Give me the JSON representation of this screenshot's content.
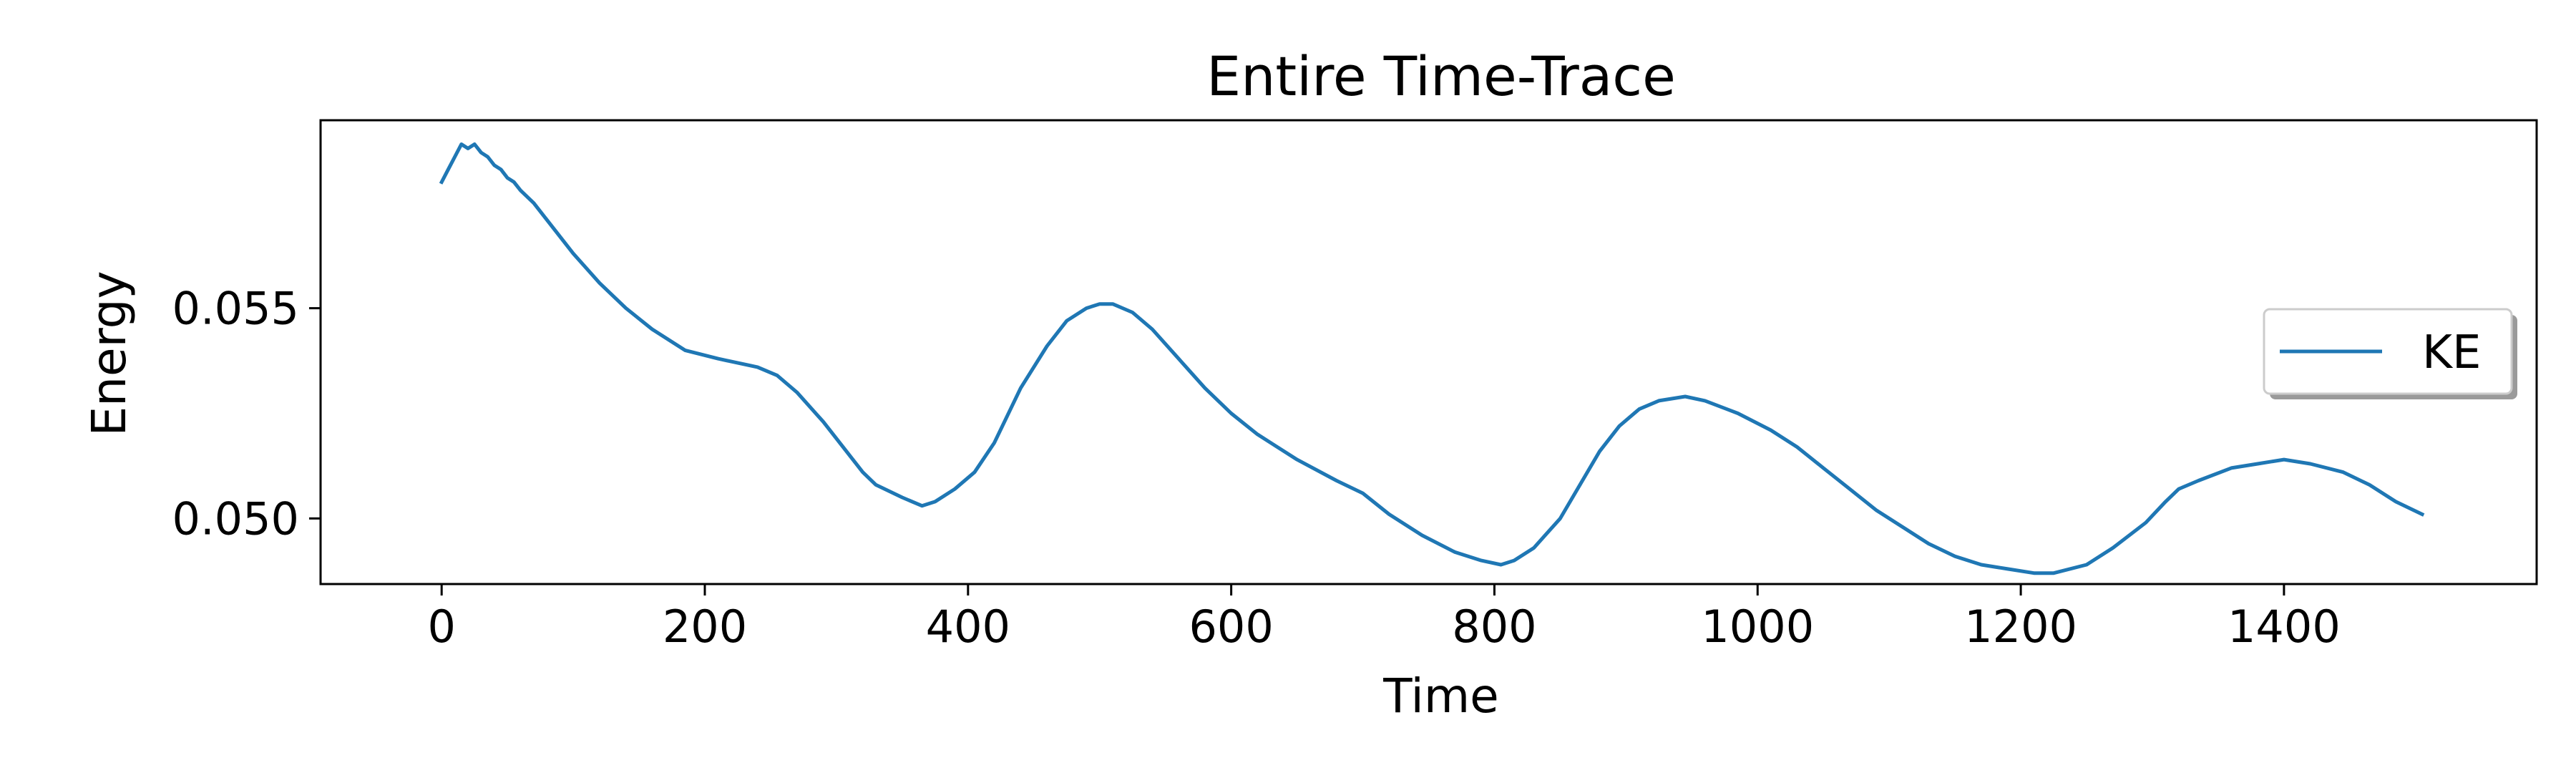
{
  "chart_data": {
    "type": "line",
    "title": "Entire Time-Trace",
    "xlabel": "Time",
    "ylabel": "Energy",
    "xlim": [
      -92,
      1592
    ],
    "ylim": [
      0.04844,
      0.05947
    ],
    "xticks": [
      0,
      200,
      400,
      600,
      800,
      1000,
      1200,
      1400
    ],
    "xtick_labels": [
      "0",
      "200",
      "400",
      "600",
      "800",
      "1000",
      "1200",
      "1400"
    ],
    "yticks": [
      0.05,
      0.055
    ],
    "ytick_labels": [
      "0.050",
      "0.055"
    ],
    "grid": false,
    "legend_position": "center-right",
    "series": [
      {
        "name": "KE",
        "color": "#1f77b4",
        "x": [
          0,
          5,
          10,
          15,
          20,
          25,
          30,
          35,
          40,
          45,
          50,
          55,
          60,
          70,
          80,
          90,
          100,
          120,
          140,
          160,
          185,
          210,
          240,
          255,
          270,
          290,
          310,
          320,
          330,
          350,
          365,
          375,
          390,
          405,
          420,
          440,
          460,
          475,
          490,
          500,
          510,
          525,
          540,
          560,
          580,
          600,
          620,
          650,
          680,
          700,
          720,
          745,
          770,
          790,
          805,
          815,
          830,
          850,
          865,
          880,
          895,
          910,
          925,
          945,
          960,
          985,
          1010,
          1030,
          1050,
          1070,
          1090,
          1110,
          1130,
          1150,
          1170,
          1190,
          1210,
          1225,
          1250,
          1270,
          1295,
          1310,
          1320,
          1335,
          1360,
          1380,
          1400,
          1420,
          1445,
          1465,
          1485,
          1505
        ],
        "y": [
          0.058,
          0.0583,
          0.0586,
          0.0589,
          0.0588,
          0.0589,
          0.0587,
          0.0586,
          0.0584,
          0.0583,
          0.0581,
          0.058,
          0.0578,
          0.0575,
          0.0571,
          0.0567,
          0.0563,
          0.0556,
          0.055,
          0.0545,
          0.054,
          0.0538,
          0.0536,
          0.0534,
          0.053,
          0.0523,
          0.0515,
          0.0511,
          0.0508,
          0.0505,
          0.0503,
          0.0504,
          0.0507,
          0.0511,
          0.0518,
          0.0531,
          0.0541,
          0.0547,
          0.055,
          0.0551,
          0.0551,
          0.0549,
          0.0545,
          0.0538,
          0.0531,
          0.0525,
          0.052,
          0.0514,
          0.0509,
          0.0506,
          0.0501,
          0.0496,
          0.0492,
          0.049,
          0.0489,
          0.049,
          0.0493,
          0.05,
          0.0508,
          0.0516,
          0.0522,
          0.0526,
          0.0528,
          0.0529,
          0.0528,
          0.0525,
          0.0521,
          0.0517,
          0.0512,
          0.0507,
          0.0502,
          0.0498,
          0.0494,
          0.0491,
          0.0489,
          0.0488,
          0.0487,
          0.0487,
          0.0489,
          0.0493,
          0.0499,
          0.0504,
          0.0507,
          0.0509,
          0.0512,
          0.0513,
          0.0514,
          0.0513,
          0.0511,
          0.0508,
          0.0504,
          0.0501
        ]
      }
    ]
  }
}
